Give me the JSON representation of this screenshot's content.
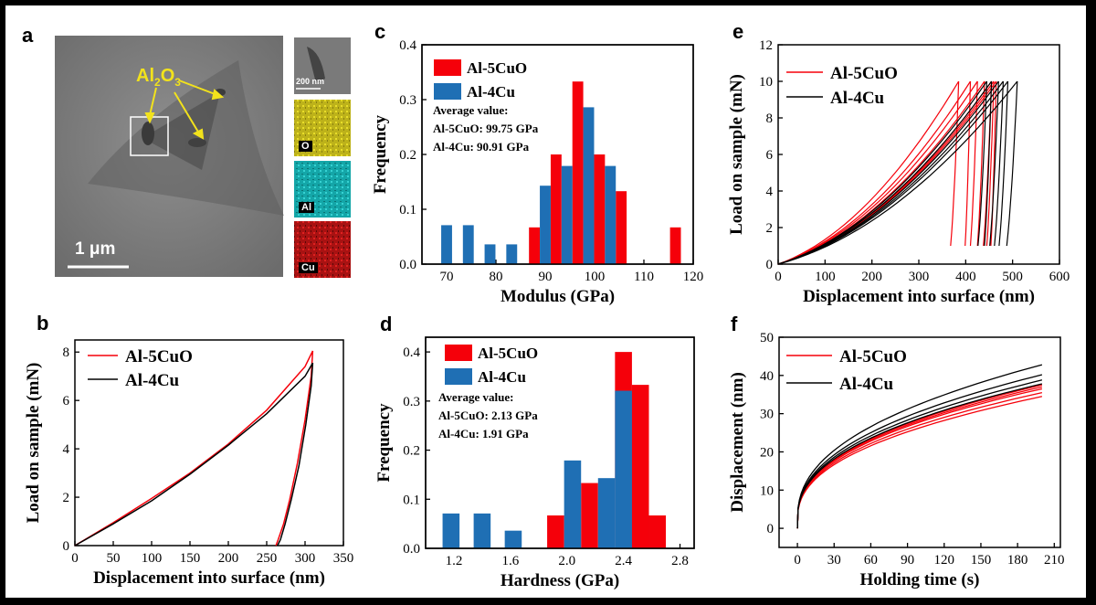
{
  "colors": {
    "red": "#f5000a",
    "blue": "#1f6fb4",
    "black": "#000000",
    "yellow": "#f2e21c"
  },
  "panel_a": {
    "letter": "a",
    "label": "Al2O3",
    "label_main": "Al",
    "label_sub1": "2",
    "label_mid": "O",
    "label_sub2": "3",
    "scale_bar": "1 μm",
    "inset_scale": "200 nm",
    "maps": [
      {
        "element": "O",
        "color": "#d8d01a"
      },
      {
        "element": "Al",
        "color": "#18b8b8"
      },
      {
        "element": "Cu",
        "color": "#c81818"
      }
    ]
  },
  "chart_data": [
    {
      "id": "b",
      "letter": "b",
      "type": "line",
      "title": "",
      "xlabel": "Displacement into surface (nm)",
      "ylabel": "Load on sample (mN)",
      "xlim": [
        0,
        350
      ],
      "ylim": [
        0,
        8.5
      ],
      "xticks": [
        0,
        50,
        100,
        150,
        200,
        250,
        300,
        350
      ],
      "yticks": [
        0,
        2,
        4,
        6,
        8
      ],
      "legend": [
        "Al-5CuO",
        "Al-4Cu"
      ],
      "series": [
        {
          "name": "Al-5CuO",
          "color": "#f5000a",
          "loading": {
            "x": [
              0,
              50,
              100,
              150,
              200,
              250,
              300,
              310
            ],
            "y": [
              0,
              0.95,
              1.95,
              3.0,
              4.2,
              5.6,
              7.4,
              8.05
            ]
          },
          "unloading": {
            "x": [
              310,
              308,
              300,
              290,
              280,
              272,
              265,
              262
            ],
            "y": [
              8.05,
              7.0,
              5.2,
              3.4,
              1.9,
              0.9,
              0.25,
              0
            ]
          }
        },
        {
          "name": "Al-4Cu",
          "color": "#000000",
          "loading": {
            "x": [
              0,
              50,
              100,
              150,
              200,
              250,
              300,
              310
            ],
            "y": [
              0,
              0.9,
              1.85,
              2.95,
              4.15,
              5.45,
              7.0,
              7.55
            ]
          },
          "unloading": {
            "x": [
              310,
              308,
              301,
              292,
              282,
              274,
              268,
              264
            ],
            "y": [
              7.55,
              6.6,
              5.0,
              3.3,
              1.9,
              0.9,
              0.25,
              0
            ]
          }
        }
      ]
    },
    {
      "id": "c",
      "letter": "c",
      "type": "bar",
      "xlabel": "Modulus (GPa)",
      "ylabel": "Frequency",
      "xlim": [
        65,
        120
      ],
      "ylim": [
        0,
        0.4
      ],
      "xticks": [
        70,
        80,
        90,
        100,
        110,
        120
      ],
      "yticks": [
        0.0,
        0.1,
        0.2,
        0.3,
        0.4
      ],
      "bin_width": 2.2,
      "legend": [
        "Al-5CuO",
        "Al-4Cu"
      ],
      "annotation": [
        "Average value:",
        "Al-5CuO: 99.75 GPa",
        "Al-4Cu: 90.91 GPa"
      ],
      "series": [
        {
          "name": "Al-5CuO",
          "color": "#f5000a",
          "x": [
            86.7,
            91.1,
            95.5,
            99.9,
            104.3,
            115.3
          ],
          "values": [
            0.067,
            0.2,
            0.333,
            0.2,
            0.133,
            0.067
          ]
        },
        {
          "name": "Al-4Cu",
          "color": "#1f6fb4",
          "x": [
            68.9,
            73.3,
            77.7,
            82.1,
            88.9,
            93.3,
            97.7,
            102.1
          ],
          "values": [
            0.071,
            0.071,
            0.036,
            0.036,
            0.143,
            0.179,
            0.286,
            0.179
          ]
        }
      ]
    },
    {
      "id": "d",
      "letter": "d",
      "type": "bar",
      "xlabel": "Hardness (GPa)",
      "ylabel": "Frequency",
      "xlim": [
        1.0,
        2.9
      ],
      "ylim": [
        0,
        0.43
      ],
      "xticks": [
        1.2,
        1.6,
        2.0,
        2.4,
        2.8
      ],
      "xtick_labels": [
        "1.2",
        "1.6",
        "2.0",
        "2.4",
        "2.8"
      ],
      "yticks": [
        0.0,
        0.1,
        0.2,
        0.3,
        0.4
      ],
      "ytick_labels": [
        "0.0",
        "0.1",
        "0.2",
        "0.3",
        "0.4"
      ],
      "bin_width": 0.12,
      "legend": [
        "Al-5CuO",
        "Al-4Cu"
      ],
      "annotation": [
        "Average value:",
        "Al-5CuO: 2.13 GPa",
        "Al-4Cu: 1.91 GPa"
      ],
      "series": [
        {
          "name": "Al-5CuO",
          "color": "#f5000a",
          "x": [
            1.86,
            2.1,
            2.34,
            2.58
          ],
          "values": [
            0.067,
            0.133,
            0.4,
            0.067
          ]
        },
        {
          "name": "Al-4Cu",
          "color": "#1f6fb4",
          "x": [
            1.12,
            1.34,
            1.56,
            1.98,
            2.22,
            2.46
          ],
          "values": [
            0.071,
            0.071,
            0.036,
            0.179,
            0.143,
            0.179
          ]
        },
        {
          "name": "Al-5CuO",
          "color": "#f5000a",
          "x": [
            2.46
          ],
          "values": [
            0.333
          ]
        },
        {
          "name": "Al-4Cu",
          "color": "#1f6fb4",
          "x": [
            2.34
          ],
          "values": [
            0.321
          ]
        }
      ]
    },
    {
      "id": "e",
      "letter": "e",
      "type": "line",
      "xlabel": "Displacement into surface (nm)",
      "ylabel": "Load on sample (mN)",
      "xlim": [
        0,
        600
      ],
      "ylim": [
        0,
        12
      ],
      "xticks": [
        0,
        100,
        200,
        300,
        400,
        500,
        600
      ],
      "yticks": [
        0,
        2,
        4,
        6,
        8,
        10,
        12
      ],
      "legend": [
        "Al-5CuO",
        "Al-4Cu"
      ],
      "series": [
        {
          "name": "Al-5CuO",
          "color": "#f5000a",
          "max_displacements": [
            385,
            410,
            425,
            440,
            455,
            460,
            465
          ],
          "final_displacements": [
            362,
            395,
            405,
            420,
            432,
            440,
            450
          ]
        },
        {
          "name": "Al-4Cu",
          "color": "#000000",
          "max_displacements": [
            445,
            455,
            470,
            480,
            490,
            510
          ],
          "final_displacements": [
            420,
            435,
            445,
            455,
            465,
            480
          ]
        }
      ]
    },
    {
      "id": "f",
      "letter": "f",
      "type": "line",
      "xlabel": "Holding time (s)",
      "ylabel": "Displacement (nm)",
      "xlim": [
        -15,
        215
      ],
      "ylim": [
        -5,
        50
      ],
      "xticks": [
        0,
        30,
        60,
        90,
        120,
        150,
        180,
        210
      ],
      "yticks": [
        0,
        10,
        20,
        30,
        40,
        50
      ],
      "legend": [
        "Al-5CuO",
        "Al-4Cu"
      ],
      "series": [
        {
          "name": "Al-5CuO",
          "color": "#f5000a",
          "final_values": [
            34.5,
            35.5,
            36.5,
            37.0,
            37.5
          ]
        },
        {
          "name": "Al-4Cu",
          "color": "#000000",
          "final_values": [
            37.8,
            38.8,
            40.2,
            42.8
          ]
        }
      ]
    }
  ]
}
